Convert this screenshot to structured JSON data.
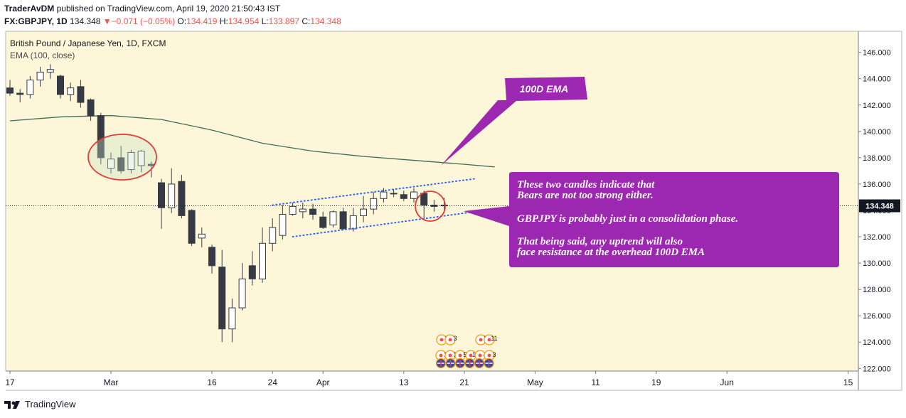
{
  "header": {
    "author": "TraderAvDM",
    "published_text": "published on TradingView.com, April 19, 2020 21:50:43 IST",
    "symbol_prefix": "FX:GBPJPY, 1D",
    "last_price": "134.348",
    "change": "−0.071 (−0.05%)",
    "open_label": "O:",
    "open": "134.419",
    "high_label": "H:",
    "high": "134.954",
    "low_label": "L:",
    "low": "133.897",
    "close_label": "C:",
    "close": "134.348"
  },
  "legend": {
    "instrument": "British Pound / Japanese Yen, 1D, FXCM",
    "indicator": "EMA (100, close)"
  },
  "annotations": {
    "ema_callout": "100D EMA",
    "note_lines": [
      "These two candles indicate that",
      "Bears are not too strong either.",
      "GBPJPY is probably just in a consolidation phase.",
      "That being said, any uptrend will also",
      "face resistance at the overhead 100D EMA"
    ]
  },
  "event_markers": {
    "row1": [
      "2",
      "3",
      "5",
      "11"
    ],
    "row2": [
      "2",
      "3",
      "5",
      "15",
      "4",
      "3"
    ]
  },
  "footer": {
    "brand": "TradingView"
  },
  "colors": {
    "plot_bg": "#fdf6d8",
    "bull_body": "#ffffff",
    "bear_body": "#363a45",
    "wick": "#363a45",
    "ema": "#3f6b5a",
    "callout": "#9c27b0",
    "circle": "#e53935",
    "trendline": "#2962ff",
    "price_label": "#131722"
  },
  "chart_data": {
    "type": "candlestick",
    "title": "British Pound / Japanese Yen, 1D, FXCM",
    "ylim": [
      121.8,
      147.6
    ],
    "y_ticks": [
      "122.000",
      "124.000",
      "126.000",
      "128.000",
      "130.000",
      "132.000",
      "134.000",
      "136.000",
      "138.000",
      "140.000",
      "142.000",
      "144.000",
      "146.000"
    ],
    "x_ticks": [
      "17",
      "Mar",
      "16",
      "24",
      "Apr",
      "13",
      "21",
      "May",
      "11",
      "19",
      "Jun",
      "15"
    ],
    "last_price_label": "134.348",
    "series": [
      {
        "name": "GBPJPY",
        "candles": [
          {
            "o": 143.3,
            "h": 143.9,
            "l": 142.7,
            "c": 142.9
          },
          {
            "o": 142.9,
            "h": 143.2,
            "l": 142.2,
            "c": 142.8
          },
          {
            "o": 142.8,
            "h": 144.2,
            "l": 142.5,
            "c": 143.9
          },
          {
            "o": 143.9,
            "h": 144.9,
            "l": 143.4,
            "c": 144.5
          },
          {
            "o": 144.5,
            "h": 145.1,
            "l": 144.0,
            "c": 144.7
          },
          {
            "o": 144.2,
            "h": 144.3,
            "l": 142.5,
            "c": 142.8
          },
          {
            "o": 142.8,
            "h": 143.7,
            "l": 142.3,
            "c": 143.3
          },
          {
            "o": 143.4,
            "h": 143.9,
            "l": 141.8,
            "c": 142.2
          },
          {
            "o": 142.4,
            "h": 142.5,
            "l": 140.8,
            "c": 141.2
          },
          {
            "o": 141.2,
            "h": 141.4,
            "l": 137.5,
            "c": 138.0
          },
          {
            "o": 137.2,
            "h": 138.4,
            "l": 136.8,
            "c": 137.9
          },
          {
            "o": 138.0,
            "h": 138.9,
            "l": 136.8,
            "c": 137.0
          },
          {
            "o": 137.1,
            "h": 138.6,
            "l": 136.8,
            "c": 138.4
          },
          {
            "o": 137.4,
            "h": 138.6,
            "l": 136.9,
            "c": 138.5
          },
          {
            "o": 137.5,
            "h": 137.7,
            "l": 136.5,
            "c": 137.4
          },
          {
            "o": 136.1,
            "h": 136.4,
            "l": 132.6,
            "c": 134.2
          },
          {
            "o": 134.2,
            "h": 137.2,
            "l": 133.8,
            "c": 136.0
          },
          {
            "o": 136.2,
            "h": 136.7,
            "l": 133.4,
            "c": 133.6
          },
          {
            "o": 134.0,
            "h": 134.1,
            "l": 131.3,
            "c": 131.5
          },
          {
            "o": 131.9,
            "h": 132.7,
            "l": 131.2,
            "c": 132.2
          },
          {
            "o": 131.2,
            "h": 131.4,
            "l": 129.2,
            "c": 129.8
          },
          {
            "o": 129.7,
            "h": 131.0,
            "l": 124.0,
            "c": 125.0
          },
          {
            "o": 125.0,
            "h": 127.3,
            "l": 124.0,
            "c": 126.6
          },
          {
            "o": 126.6,
            "h": 130.0,
            "l": 126.4,
            "c": 128.8
          },
          {
            "o": 129.8,
            "h": 130.9,
            "l": 128.3,
            "c": 128.8
          },
          {
            "o": 128.8,
            "h": 132.7,
            "l": 128.5,
            "c": 131.5
          },
          {
            "o": 131.5,
            "h": 133.4,
            "l": 130.9,
            "c": 132.7
          },
          {
            "o": 132.1,
            "h": 134.4,
            "l": 131.8,
            "c": 133.7
          },
          {
            "o": 133.7,
            "h": 134.6,
            "l": 133.6,
            "c": 134.3
          },
          {
            "o": 133.9,
            "h": 134.6,
            "l": 133.4,
            "c": 134.1
          },
          {
            "o": 134.1,
            "h": 134.5,
            "l": 133.3,
            "c": 133.7
          },
          {
            "o": 133.5,
            "h": 133.9,
            "l": 132.6,
            "c": 132.7
          },
          {
            "o": 132.9,
            "h": 134.0,
            "l": 132.7,
            "c": 133.9
          },
          {
            "o": 133.9,
            "h": 134.2,
            "l": 132.6,
            "c": 132.6
          },
          {
            "o": 132.6,
            "h": 134.2,
            "l": 132.4,
            "c": 133.6
          },
          {
            "o": 133.6,
            "h": 135.1,
            "l": 133.1,
            "c": 134.1
          },
          {
            "o": 134.1,
            "h": 135.4,
            "l": 133.7,
            "c": 134.9
          },
          {
            "o": 134.9,
            "h": 135.7,
            "l": 134.6,
            "c": 135.4
          },
          {
            "o": 135.3,
            "h": 135.6,
            "l": 135.0,
            "c": 135.3
          },
          {
            "o": 135.2,
            "h": 135.5,
            "l": 134.7,
            "c": 134.9
          },
          {
            "o": 134.9,
            "h": 135.7,
            "l": 134.6,
            "c": 135.4
          },
          {
            "o": 135.3,
            "h": 135.5,
            "l": 133.3,
            "c": 134.4
          },
          {
            "o": 134.4,
            "h": 134.8,
            "l": 133.9,
            "c": 134.3
          },
          {
            "o": 134.4,
            "h": 134.95,
            "l": 133.9,
            "c": 134.35
          }
        ]
      },
      {
        "name": "EMA (100, close)",
        "values": [
          [
            0,
            140.8
          ],
          [
            5,
            141.1
          ],
          [
            10,
            141.2
          ],
          [
            15,
            140.9
          ],
          [
            20,
            140.1
          ],
          [
            25,
            139.1
          ],
          [
            30,
            138.5
          ],
          [
            35,
            138.1
          ],
          [
            40,
            137.8
          ],
          [
            45,
            137.5
          ],
          [
            48,
            137.3
          ]
        ]
      }
    ]
  }
}
